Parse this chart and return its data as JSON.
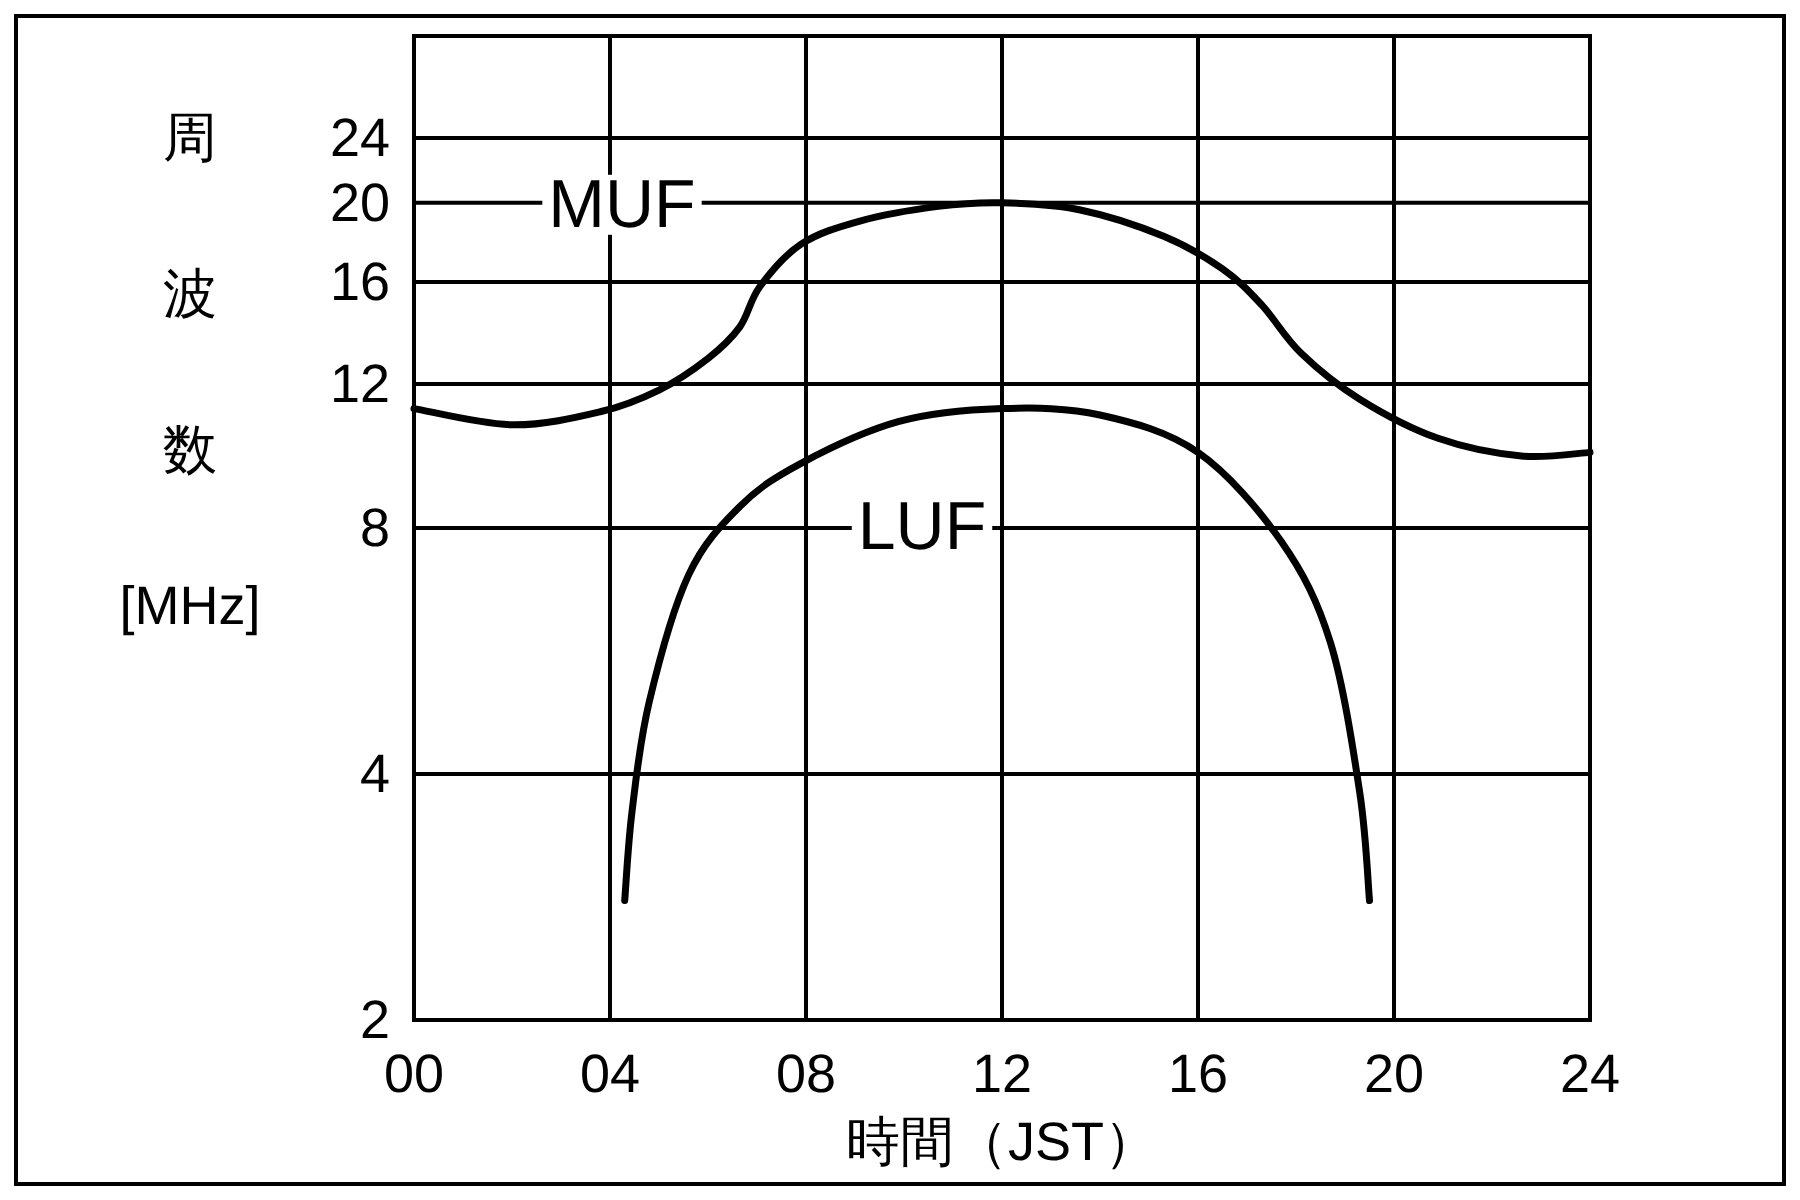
{
  "chart_data": {
    "type": "line",
    "xlabel": "時間（JST）",
    "ylabel": "周波数 [MHz]",
    "xlim": [
      0,
      24
    ],
    "xticks": [
      {
        "value": 0,
        "label": "00"
      },
      {
        "value": 4,
        "label": "04"
      },
      {
        "value": 8,
        "label": "08"
      },
      {
        "value": 12,
        "label": "12"
      },
      {
        "value": 16,
        "label": "16"
      },
      {
        "value": 20,
        "label": "20"
      },
      {
        "value": 24,
        "label": "24"
      }
    ],
    "ylim": [
      2,
      32
    ],
    "yticks": [
      2,
      4,
      8,
      12,
      16,
      20,
      24
    ],
    "log": true,
    "grid": true,
    "marker": "none",
    "line_style": "solid",
    "series": [
      {
        "name": "MUF",
        "color": "#000000",
        "x": [
          0,
          2,
          3.8,
          5,
          6,
          6.65,
          7.06,
          7.9,
          9.1,
          10.7,
          12,
          13.6,
          15.3,
          16.5,
          17.3,
          18.1,
          19.3,
          20.9,
          22.6,
          24
        ],
        "values": [
          11.2,
          10.7,
          11.1,
          11.8,
          12.9,
          14.1,
          15.8,
          17.8,
          19,
          19.8,
          20,
          19.6,
          18.2,
          16.6,
          15,
          13.1,
          11.5,
          10.3,
          9.8,
          9.9
        ]
      },
      {
        "name": "LUF",
        "color": "#000000",
        "x": [
          4.3,
          4.45,
          4.8,
          5.6,
          6.65,
          7.9,
          9.9,
          12,
          14,
          16,
          17.7,
          18.7,
          19.3,
          19.5
        ],
        "values": [
          2.8,
          3.6,
          4.9,
          7,
          8.5,
          9.6,
          10.8,
          11.2,
          11,
          9.9,
          7.7,
          5.8,
          3.8,
          2.8
        ]
      }
    ]
  }
}
